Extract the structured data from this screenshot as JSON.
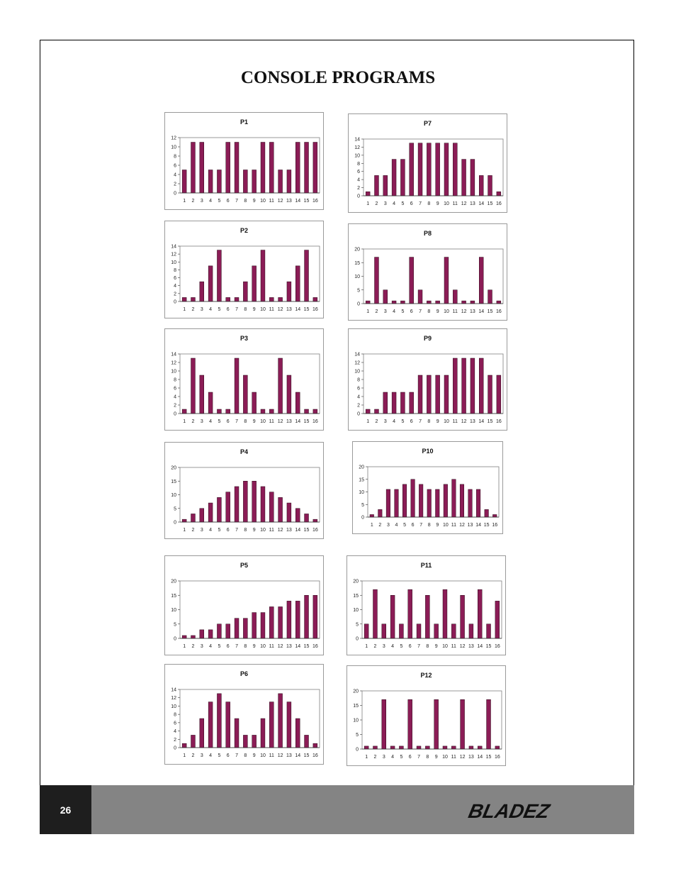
{
  "page": {
    "title": "CONSOLE PROGRAMS",
    "page_number": "26",
    "brand": "BLADEZ",
    "bar_color": "#8b1c56"
  },
  "chart_data": [
    {
      "type": "bar",
      "title": "P1",
      "categories": [
        "1",
        "2",
        "3",
        "4",
        "5",
        "6",
        "7",
        "8",
        "9",
        "10",
        "11",
        "12",
        "13",
        "14",
        "15",
        "16"
      ],
      "values": [
        5,
        11,
        11,
        5,
        5,
        11,
        11,
        5,
        5,
        11,
        11,
        5,
        5,
        11,
        11,
        11
      ],
      "ylim": [
        0,
        12
      ],
      "yticks": [
        0,
        2,
        4,
        6,
        8,
        10,
        12
      ]
    },
    {
      "type": "bar",
      "title": "P2",
      "categories": [
        "1",
        "2",
        "3",
        "4",
        "5",
        "6",
        "7",
        "8",
        "9",
        "10",
        "11",
        "12",
        "13",
        "14",
        "15",
        "16"
      ],
      "values": [
        1,
        1,
        5,
        9,
        13,
        1,
        1,
        5,
        9,
        13,
        1,
        1,
        5,
        9,
        13,
        1
      ],
      "ylim": [
        0,
        14
      ],
      "yticks": [
        0,
        2,
        4,
        6,
        8,
        10,
        12,
        14
      ]
    },
    {
      "type": "bar",
      "title": "P3",
      "categories": [
        "1",
        "2",
        "3",
        "4",
        "5",
        "6",
        "7",
        "8",
        "9",
        "10",
        "11",
        "12",
        "13",
        "14",
        "15",
        "16"
      ],
      "values": [
        1,
        13,
        9,
        5,
        1,
        1,
        13,
        9,
        5,
        1,
        1,
        13,
        9,
        5,
        1,
        1
      ],
      "ylim": [
        0,
        14
      ],
      "yticks": [
        0,
        2,
        4,
        6,
        8,
        10,
        12,
        14
      ]
    },
    {
      "type": "bar",
      "title": "P4",
      "categories": [
        "1",
        "2",
        "3",
        "4",
        "5",
        "6",
        "7",
        "8",
        "9",
        "10",
        "11",
        "12",
        "13",
        "14",
        "15",
        "16"
      ],
      "values": [
        1,
        3,
        5,
        7,
        9,
        11,
        13,
        15,
        15,
        13,
        11,
        9,
        7,
        5,
        3,
        1
      ],
      "ylim": [
        0,
        20
      ],
      "yticks": [
        0,
        5,
        10,
        15,
        20
      ]
    },
    {
      "type": "bar",
      "title": "P5",
      "categories": [
        "1",
        "2",
        "3",
        "4",
        "5",
        "6",
        "7",
        "8",
        "9",
        "10",
        "11",
        "12",
        "13",
        "14",
        "15",
        "16"
      ],
      "values": [
        1,
        1,
        3,
        3,
        5,
        5,
        7,
        7,
        9,
        9,
        11,
        11,
        13,
        13,
        15,
        15
      ],
      "ylim": [
        0,
        20
      ],
      "yticks": [
        0,
        5,
        10,
        15,
        20
      ]
    },
    {
      "type": "bar",
      "title": "P6",
      "categories": [
        "1",
        "2",
        "3",
        "4",
        "5",
        "6",
        "7",
        "8",
        "9",
        "10",
        "11",
        "12",
        "13",
        "14",
        "15",
        "16"
      ],
      "values": [
        1,
        3,
        7,
        11,
        13,
        11,
        7,
        3,
        3,
        7,
        11,
        13,
        11,
        7,
        3,
        1
      ],
      "ylim": [
        0,
        14
      ],
      "yticks": [
        0,
        2,
        4,
        6,
        8,
        10,
        12,
        14
      ]
    },
    {
      "type": "bar",
      "title": "P7",
      "categories": [
        "1",
        "2",
        "3",
        "4",
        "5",
        "6",
        "7",
        "8",
        "9",
        "10",
        "11",
        "12",
        "13",
        "14",
        "15",
        "16"
      ],
      "values": [
        1,
        5,
        5,
        9,
        9,
        13,
        13,
        13,
        13,
        13,
        13,
        9,
        9,
        5,
        5,
        1
      ],
      "ylim": [
        0,
        14
      ],
      "yticks": [
        0,
        2,
        4,
        6,
        8,
        10,
        12,
        14
      ]
    },
    {
      "type": "bar",
      "title": "P8",
      "categories": [
        "1",
        "2",
        "3",
        "4",
        "5",
        "6",
        "7",
        "8",
        "9",
        "10",
        "11",
        "12",
        "13",
        "14",
        "15",
        "16"
      ],
      "values": [
        1,
        17,
        5,
        1,
        1,
        17,
        5,
        1,
        1,
        17,
        5,
        1,
        1,
        17,
        5,
        1
      ],
      "ylim": [
        0,
        20
      ],
      "yticks": [
        0,
        5,
        10,
        15,
        20
      ]
    },
    {
      "type": "bar",
      "title": "P9",
      "categories": [
        "1",
        "2",
        "3",
        "4",
        "5",
        "6",
        "7",
        "8",
        "9",
        "10",
        "11",
        "12",
        "13",
        "14",
        "15",
        "16"
      ],
      "values": [
        1,
        1,
        5,
        5,
        5,
        5,
        9,
        9,
        9,
        9,
        13,
        13,
        13,
        13,
        9,
        9
      ],
      "ylim": [
        0,
        14
      ],
      "yticks": [
        0,
        2,
        4,
        6,
        8,
        10,
        12,
        14
      ]
    },
    {
      "type": "bar",
      "title": "P10",
      "categories": [
        "1",
        "2",
        "3",
        "4",
        "5",
        "6",
        "7",
        "8",
        "9",
        "10",
        "11",
        "12",
        "13",
        "14",
        "15",
        "16"
      ],
      "values": [
        1,
        3,
        11,
        11,
        13,
        15,
        13,
        11,
        11,
        13,
        15,
        13,
        11,
        11,
        3,
        1
      ],
      "ylim": [
        0,
        20
      ],
      "yticks": [
        0,
        5,
        10,
        15,
        20
      ]
    },
    {
      "type": "bar",
      "title": "P11",
      "categories": [
        "1",
        "2",
        "3",
        "4",
        "5",
        "6",
        "7",
        "8",
        "9",
        "10",
        "11",
        "12",
        "13",
        "14",
        "15",
        "16"
      ],
      "values": [
        5,
        17,
        5,
        15,
        5,
        17,
        5,
        15,
        5,
        17,
        5,
        15,
        5,
        17,
        5,
        13
      ],
      "ylim": [
        0,
        20
      ],
      "yticks": [
        0,
        5,
        10,
        15,
        20
      ]
    },
    {
      "type": "bar",
      "title": "P12",
      "categories": [
        "1",
        "2",
        "3",
        "4",
        "5",
        "6",
        "7",
        "8",
        "9",
        "10",
        "11",
        "12",
        "13",
        "14",
        "15",
        "16"
      ],
      "values": [
        1,
        1,
        17,
        1,
        1,
        17,
        1,
        1,
        17,
        1,
        1,
        17,
        1,
        1,
        17,
        1
      ],
      "ylim": [
        0,
        20
      ],
      "yticks": [
        0,
        5,
        10,
        15,
        20
      ]
    }
  ]
}
